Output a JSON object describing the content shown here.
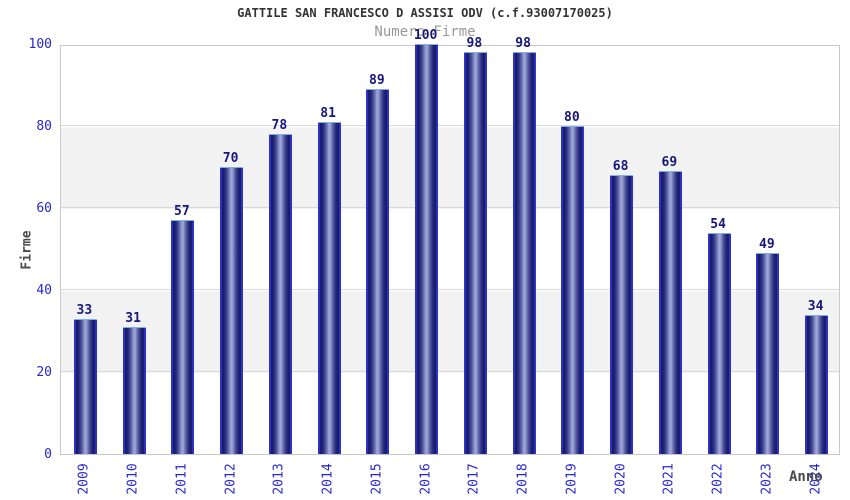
{
  "header": {
    "title": "GATTILE SAN FRANCESCO D ASSISI ODV (c.f.93007170025)",
    "subtitle": "Numero Firme"
  },
  "chart_data": {
    "type": "bar",
    "title": "GATTILE SAN FRANCESCO D ASSISI ODV (c.f.93007170025)",
    "subtitle": "Numero Firme",
    "xlabel": "Anno",
    "ylabel": "Firme",
    "categories": [
      "2009",
      "2010",
      "2011",
      "2012",
      "2013",
      "2014",
      "2015",
      "2016",
      "2017",
      "2018",
      "2019",
      "2020",
      "2021",
      "2022",
      "2023",
      "2024"
    ],
    "values": [
      33,
      31,
      57,
      70,
      78,
      81,
      89,
      100,
      98,
      98,
      80,
      68,
      69,
      54,
      49,
      34
    ],
    "ylim": [
      0,
      100
    ],
    "yticks": [
      0,
      20,
      40,
      60,
      80,
      100
    ],
    "grid": true,
    "band_interval": 20,
    "legend_position": "none"
  },
  "colors": {
    "bar_edge_blue": "#2d33cd",
    "bar_dark_navy": "#15175e",
    "bar_mid_light": "#9ca3d6",
    "bar_top_border": "#7fb2e0",
    "tick_label_blue": "#2828d2",
    "value_label_navy": "#17177d",
    "title_color": "#333333",
    "subtitle_color": "#999999",
    "axis_title_color": "#4a4a4a",
    "band_gray": "#f2f2f2",
    "grid_color": "#d9d9d9",
    "plot_border": "#c9c9c9",
    "background": "#ffffff"
  }
}
